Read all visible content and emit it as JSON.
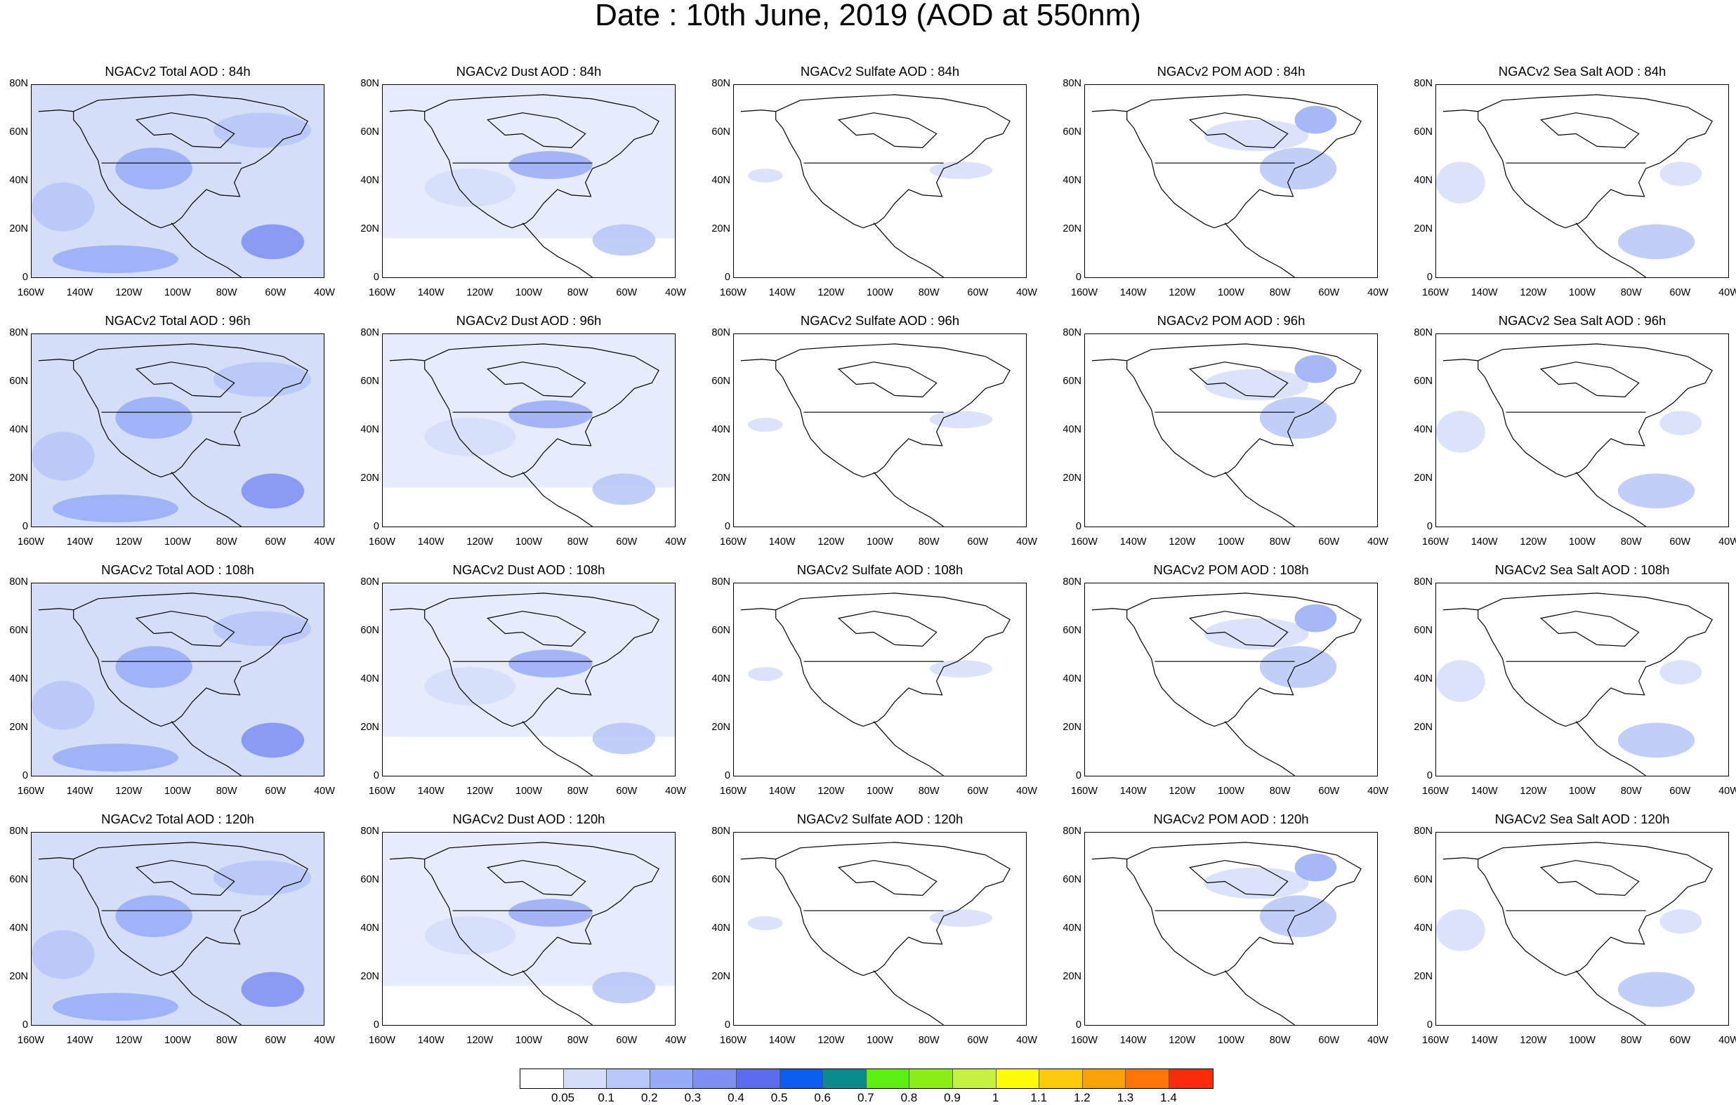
{
  "title": "Date : 10th June, 2019 (AOD at 550nm)",
  "lat_labels": [
    "80N",
    "60N",
    "40N",
    "20N",
    "0"
  ],
  "lon_labels": [
    "160W",
    "140W",
    "120W",
    "100W",
    "80W",
    "60W",
    "40W"
  ],
  "panels": [
    [
      "NGACv2 Total AOD : 84h",
      "NGACv2 Dust AOD : 84h",
      "NGACv2 Sulfate AOD : 84h",
      "NGACv2 POM AOD : 84h",
      "NGACv2 Sea Salt AOD : 84h"
    ],
    [
      "NGACv2 Total AOD : 96h",
      "NGACv2 Dust AOD : 96h",
      "NGACv2 Sulfate AOD : 96h",
      "NGACv2 POM AOD : 96h",
      "NGACv2 Sea Salt AOD : 96h"
    ],
    [
      "NGACv2 Total AOD : 108h",
      "NGACv2 Dust AOD : 108h",
      "NGACv2 Sulfate AOD : 108h",
      "NGACv2 POM AOD : 108h",
      "NGACv2 Sea Salt AOD : 108h"
    ],
    [
      "NGACv2 Total AOD : 120h",
      "NGACv2 Dust AOD : 120h",
      "NGACv2 Sulfate AOD : 120h",
      "NGACv2 POM AOD : 120h",
      "NGACv2 Sea Salt  AOD : 120h"
    ]
  ],
  "colorbar": {
    "colors": [
      "#ffffff",
      "#d4def9",
      "#b5c6f7",
      "#96acf6",
      "#7e8ff2",
      "#5d6cef",
      "#0d5ef0",
      "#0a8c8c",
      "#5bef12",
      "#8ced16",
      "#c6f140",
      "#fdfd09",
      "#fcca0b",
      "#fba20a",
      "#fa7506",
      "#fa2b0a"
    ],
    "labels": [
      "0.05",
      "0.1",
      "0.2",
      "0.3",
      "0.4",
      "0.5",
      "0.6",
      "0.7",
      "0.8",
      "0.9",
      "1",
      "1.1",
      "1.2",
      "1.3",
      "1.4"
    ]
  }
}
